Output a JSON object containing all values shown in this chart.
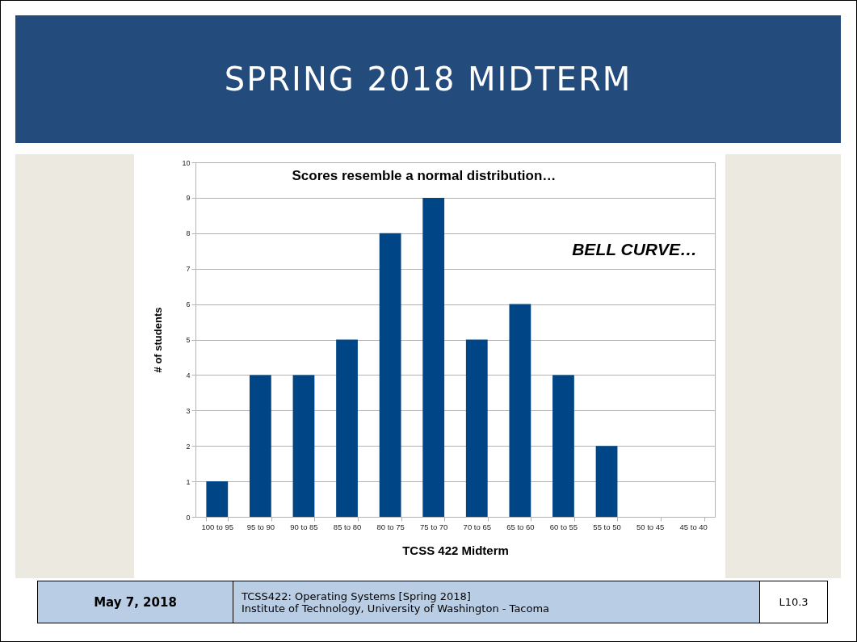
{
  "chart_data": {
    "type": "bar",
    "title": "SPRING 2018 MIDTERM",
    "subtitle": "Scores resemble a normal distribution…",
    "xlabel": "TCSS 422 Midterm",
    "ylabel": "# of students",
    "categories": [
      "100 to 95",
      "95 to 90",
      "90 to 85",
      "85 to 80",
      "80 to 75",
      "75 to 70",
      "70 to 65",
      "65 to 60",
      "60 to 55",
      "55 to 50",
      "50 to 45",
      "45 to 40"
    ],
    "values": [
      1,
      4,
      4,
      5,
      8,
      9,
      5,
      6,
      4,
      2,
      0,
      0
    ],
    "color": "#004586",
    "ylim": [
      0,
      10
    ],
    "yticks": [
      0,
      1,
      2,
      3,
      4,
      5,
      6,
      7,
      8,
      9,
      10
    ],
    "grid": "y",
    "annotations": [
      "BELL CURVE…",
      "May 7, 2018",
      "TCSS422: Operating Systems [Spring 2018]",
      "Institute of Technology, University of Washington - Tacoma",
      "L10.3"
    ]
  }
}
